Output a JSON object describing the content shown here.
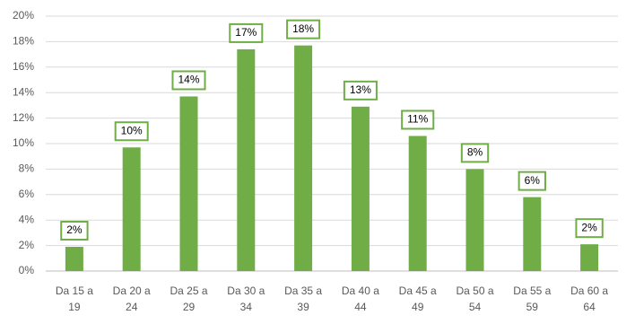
{
  "chart_data": {
    "type": "bar",
    "categories": [
      "Da 15 a 19",
      "Da 20 a 24",
      "Da 25 a 29",
      "Da 30 a 34",
      "Da 35 a 39",
      "Da 40 a 44",
      "Da 45 a 49",
      "Da 50 a 54",
      "Da 55 a 59",
      "Da 60 a 64"
    ],
    "values": [
      1.9,
      9.7,
      13.7,
      17.4,
      17.7,
      12.9,
      10.6,
      8.0,
      5.8,
      2.1
    ],
    "value_labels": [
      "2%",
      "10%",
      "14%",
      "17%",
      "18%",
      "13%",
      "11%",
      "8%",
      "6%",
      "2%"
    ],
    "color": "#70ad47",
    "ylim": [
      0,
      20
    ],
    "yticks": [
      {
        "value": 0,
        "label": "0%"
      },
      {
        "value": 2,
        "label": "2%"
      },
      {
        "value": 4,
        "label": "4%"
      },
      {
        "value": 6,
        "label": "6%"
      },
      {
        "value": 8,
        "label": "8%"
      },
      {
        "value": 10,
        "label": "10%"
      },
      {
        "value": 12,
        "label": "12%"
      },
      {
        "value": 14,
        "label": "14%"
      },
      {
        "value": 16,
        "label": "16%"
      },
      {
        "value": 18,
        "label": "18%"
      },
      {
        "value": 20,
        "label": "20%"
      }
    ],
    "grid": true
  }
}
